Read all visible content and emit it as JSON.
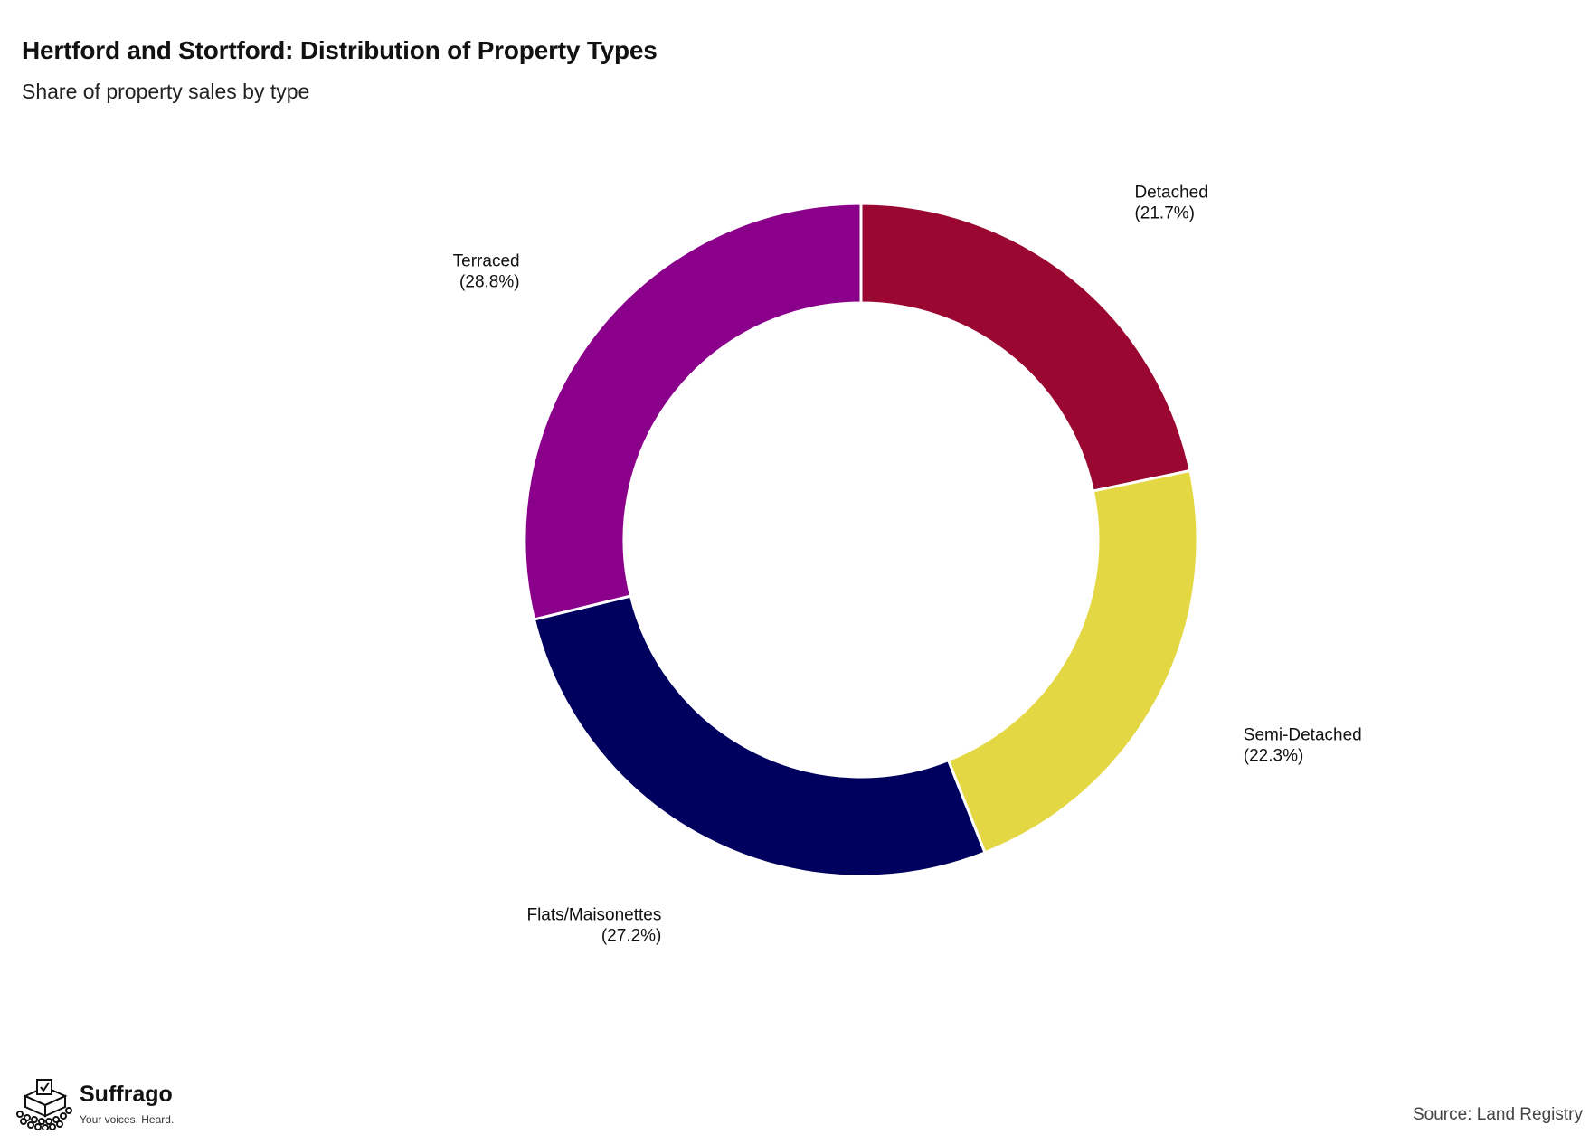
{
  "title": "Hertford and Stortford: Distribution of Property Types",
  "subtitle": "Share of property sales by type",
  "source": "Source: Land Registry",
  "brand": {
    "name": "Suffrago",
    "tagline": "Your voices. Heard."
  },
  "chart_data": {
    "type": "pie",
    "donut": true,
    "title": "Hertford and Stortford: Distribution of Property Types",
    "subtitle": "Share of property sales by type",
    "labels": [
      "Detached",
      "Semi-Detached",
      "Flats/Maisonettes",
      "Terraced"
    ],
    "values": [
      21.7,
      22.3,
      27.2,
      28.8
    ],
    "value_labels": [
      "(21.7%)",
      "(22.3%)",
      "(27.2%)",
      "(28.8%)"
    ],
    "colors": [
      "#9a0731",
      "#e3d844",
      "#00005f",
      "#8b008b"
    ],
    "start": "12 o'clock",
    "direction": "clockwise",
    "legend": "none"
  }
}
